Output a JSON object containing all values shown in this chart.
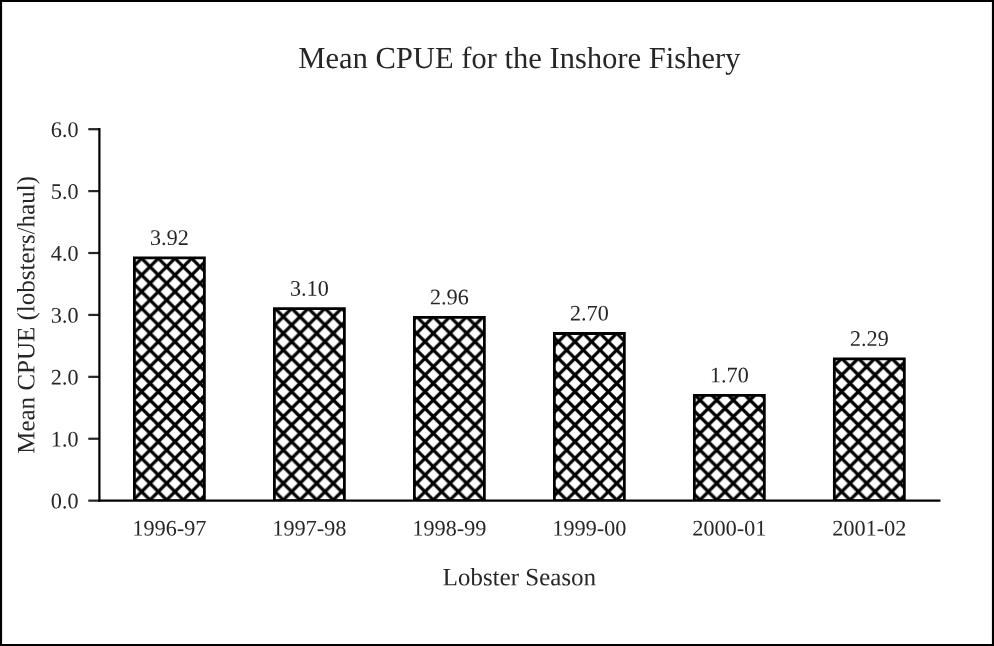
{
  "chart_data": {
    "type": "bar",
    "title": "Mean CPUE for the Inshore Fishery",
    "xlabel": "Lobster Season",
    "ylabel": "Mean CPUE (lobsters/haul)",
    "categories": [
      "1996-97",
      "1997-98",
      "1998-99",
      "1999-00",
      "2000-01",
      "2001-02"
    ],
    "values": [
      3.92,
      3.1,
      2.96,
      2.7,
      1.7,
      2.29
    ],
    "color": "#000000",
    "value_labels": [
      "3.92",
      "3.10",
      "2.96",
      "2.70",
      "1.70",
      "2.29"
    ],
    "ylim": [
      0,
      6
    ],
    "yticks": [
      {
        "value": 0,
        "label": "0.0"
      },
      {
        "value": 1,
        "label": "1.0"
      },
      {
        "value": 2,
        "label": "2.0"
      },
      {
        "value": 3,
        "label": "3.0"
      },
      {
        "value": 4,
        "label": "4.0"
      },
      {
        "value": 5,
        "label": "5.0"
      },
      {
        "value": 6,
        "label": "6.0"
      }
    ],
    "grid": false,
    "legend": false
  }
}
